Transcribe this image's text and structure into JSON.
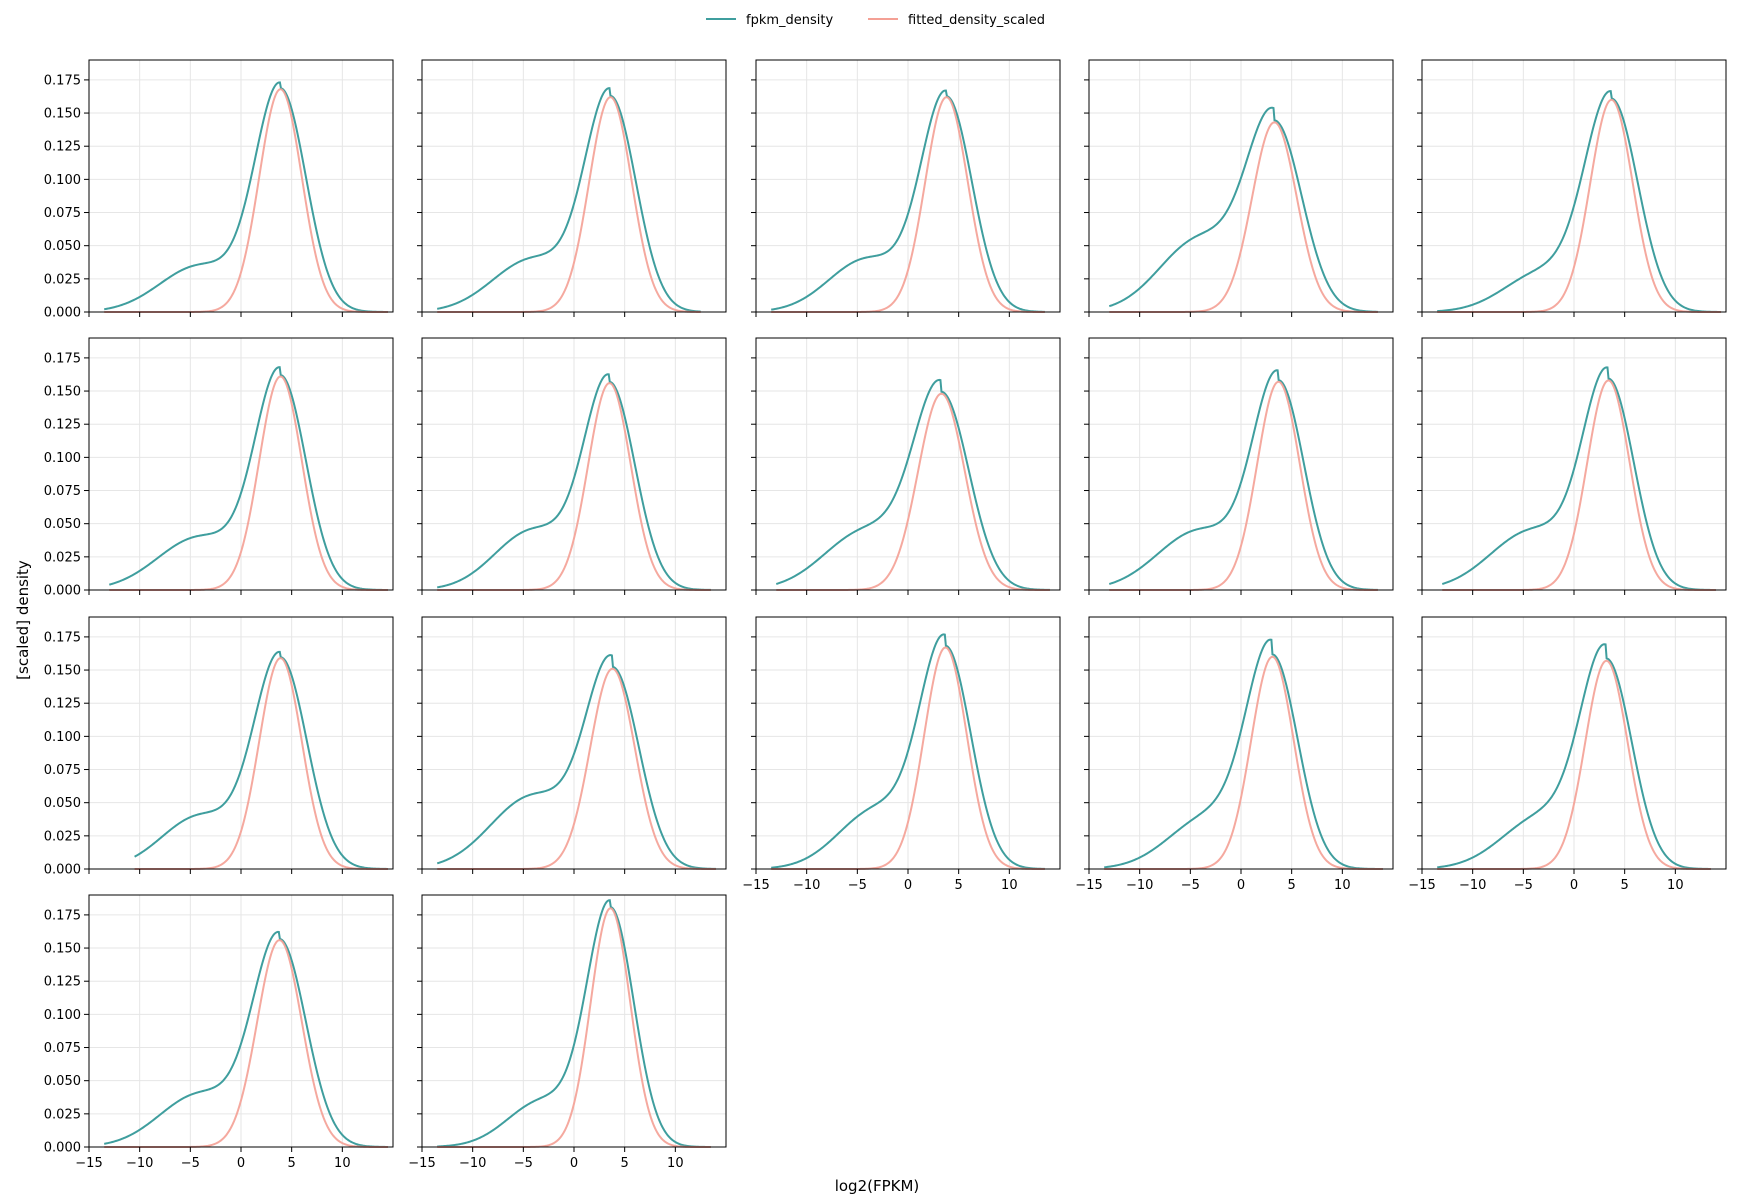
{
  "chart_data": {
    "type": "line",
    "layout": {
      "rows": 4,
      "cols": 5,
      "panels": 17
    },
    "xlabel": "log2(FPKM)",
    "ylabel": "[scaled] density",
    "xlim": [
      -15,
      15
    ],
    "ylim": [
      0,
      0.19
    ],
    "xticks": [
      -15,
      -10,
      -5,
      0,
      5,
      10
    ],
    "yticks": [
      0.0,
      0.025,
      0.05,
      0.075,
      0.1,
      0.125,
      0.15,
      0.175
    ],
    "grid": true,
    "legend": {
      "placement": "top-center",
      "entries": [
        {
          "name": "fpkm_density",
          "color": "#3f9e9e"
        },
        {
          "name": "fitted_density_scaled",
          "color": "#f4a095"
        }
      ]
    },
    "series_colors": {
      "fpkm_density": "#3f9e9e",
      "fitted_density_scaled": "#f4a095"
    },
    "panels": [
      {
        "peak_x": 3.9,
        "peak_y": 0.168,
        "x_start": -13.5,
        "x_end": 14.5,
        "fit_sigma": 2.1,
        "dens_sigma": 2.5,
        "tail_w": 0.035,
        "tail_mu": -4,
        "tail_sd": 4.0
      },
      {
        "peak_x": 3.6,
        "peak_y": 0.162,
        "x_start": -13.5,
        "x_end": 12.5,
        "fit_sigma": 2.1,
        "dens_sigma": 2.5,
        "tail_w": 0.04,
        "tail_mu": -4,
        "tail_sd": 4.0
      },
      {
        "peak_x": 3.8,
        "peak_y": 0.162,
        "x_start": -13.5,
        "x_end": 13.5,
        "fit_sigma": 2.1,
        "dens_sigma": 2.5,
        "tail_w": 0.04,
        "tail_mu": -4,
        "tail_sd": 3.8
      },
      {
        "peak_x": 3.3,
        "peak_y": 0.143,
        "x_start": -13.0,
        "x_end": 13.5,
        "fit_sigma": 2.2,
        "dens_sigma": 2.7,
        "tail_w": 0.055,
        "tail_mu": -4,
        "tail_sd": 4.0
      },
      {
        "peak_x": 3.7,
        "peak_y": 0.16,
        "x_start": -13.5,
        "x_end": 14.5,
        "fit_sigma": 2.1,
        "dens_sigma": 2.6,
        "tail_w": 0.03,
        "tail_mu": -3,
        "tail_sd": 3.8
      },
      {
        "peak_x": 3.9,
        "peak_y": 0.161,
        "x_start": -13.0,
        "x_end": 14.5,
        "fit_sigma": 2.1,
        "dens_sigma": 2.5,
        "tail_w": 0.04,
        "tail_mu": -4,
        "tail_sd": 4.2
      },
      {
        "peak_x": 3.5,
        "peak_y": 0.156,
        "x_start": -13.5,
        "x_end": 13.5,
        "fit_sigma": 2.1,
        "dens_sigma": 2.5,
        "tail_w": 0.045,
        "tail_mu": -4,
        "tail_sd": 3.8
      },
      {
        "peak_x": 3.3,
        "peak_y": 0.148,
        "x_start": -13.0,
        "x_end": 14.0,
        "fit_sigma": 2.3,
        "dens_sigma": 2.7,
        "tail_w": 0.045,
        "tail_mu": -4,
        "tail_sd": 4.2
      },
      {
        "peak_x": 3.7,
        "peak_y": 0.157,
        "x_start": -13.0,
        "x_end": 13.5,
        "fit_sigma": 2.1,
        "dens_sigma": 2.5,
        "tail_w": 0.045,
        "tail_mu": -4,
        "tail_sd": 4.2
      },
      {
        "peak_x": 3.4,
        "peak_y": 0.158,
        "x_start": -13.0,
        "x_end": 14.0,
        "fit_sigma": 2.1,
        "dens_sigma": 2.5,
        "tail_w": 0.045,
        "tail_mu": -4,
        "tail_sd": 4.2
      },
      {
        "peak_x": 3.9,
        "peak_y": 0.159,
        "x_start": -10.5,
        "x_end": 14.5,
        "fit_sigma": 2.1,
        "dens_sigma": 2.6,
        "tail_w": 0.04,
        "tail_mu": -4,
        "tail_sd": 3.8
      },
      {
        "peak_x": 3.8,
        "peak_y": 0.151,
        "x_start": -13.5,
        "x_end": 14.0,
        "fit_sigma": 2.2,
        "dens_sigma": 2.6,
        "tail_w": 0.055,
        "tail_mu": -4,
        "tail_sd": 4.2
      },
      {
        "peak_x": 3.7,
        "peak_y": 0.167,
        "x_start": -13.5,
        "x_end": 13.5,
        "fit_sigma": 2.1,
        "dens_sigma": 2.5,
        "tail_w": 0.045,
        "tail_mu": -3,
        "tail_sd": 3.8
      },
      {
        "peak_x": 3.1,
        "peak_y": 0.16,
        "x_start": -13.5,
        "x_end": 14.0,
        "fit_sigma": 2.1,
        "dens_sigma": 2.5,
        "tail_w": 0.04,
        "tail_mu": -3,
        "tail_sd": 4.0
      },
      {
        "peak_x": 3.2,
        "peak_y": 0.157,
        "x_start": -13.5,
        "x_end": 13.5,
        "fit_sigma": 2.1,
        "dens_sigma": 2.5,
        "tail_w": 0.04,
        "tail_mu": -3,
        "tail_sd": 4.0
      },
      {
        "peak_x": 3.8,
        "peak_y": 0.156,
        "x_start": -13.5,
        "x_end": 14.5,
        "fit_sigma": 2.2,
        "dens_sigma": 2.6,
        "tail_w": 0.04,
        "tail_mu": -4,
        "tail_sd": 4.0
      },
      {
        "peak_x": 3.6,
        "peak_y": 0.18,
        "x_start": -13.5,
        "x_end": 13.5,
        "fit_sigma": 1.95,
        "dens_sigma": 2.3,
        "tail_w": 0.035,
        "tail_mu": -3,
        "tail_sd": 3.5
      }
    ]
  }
}
